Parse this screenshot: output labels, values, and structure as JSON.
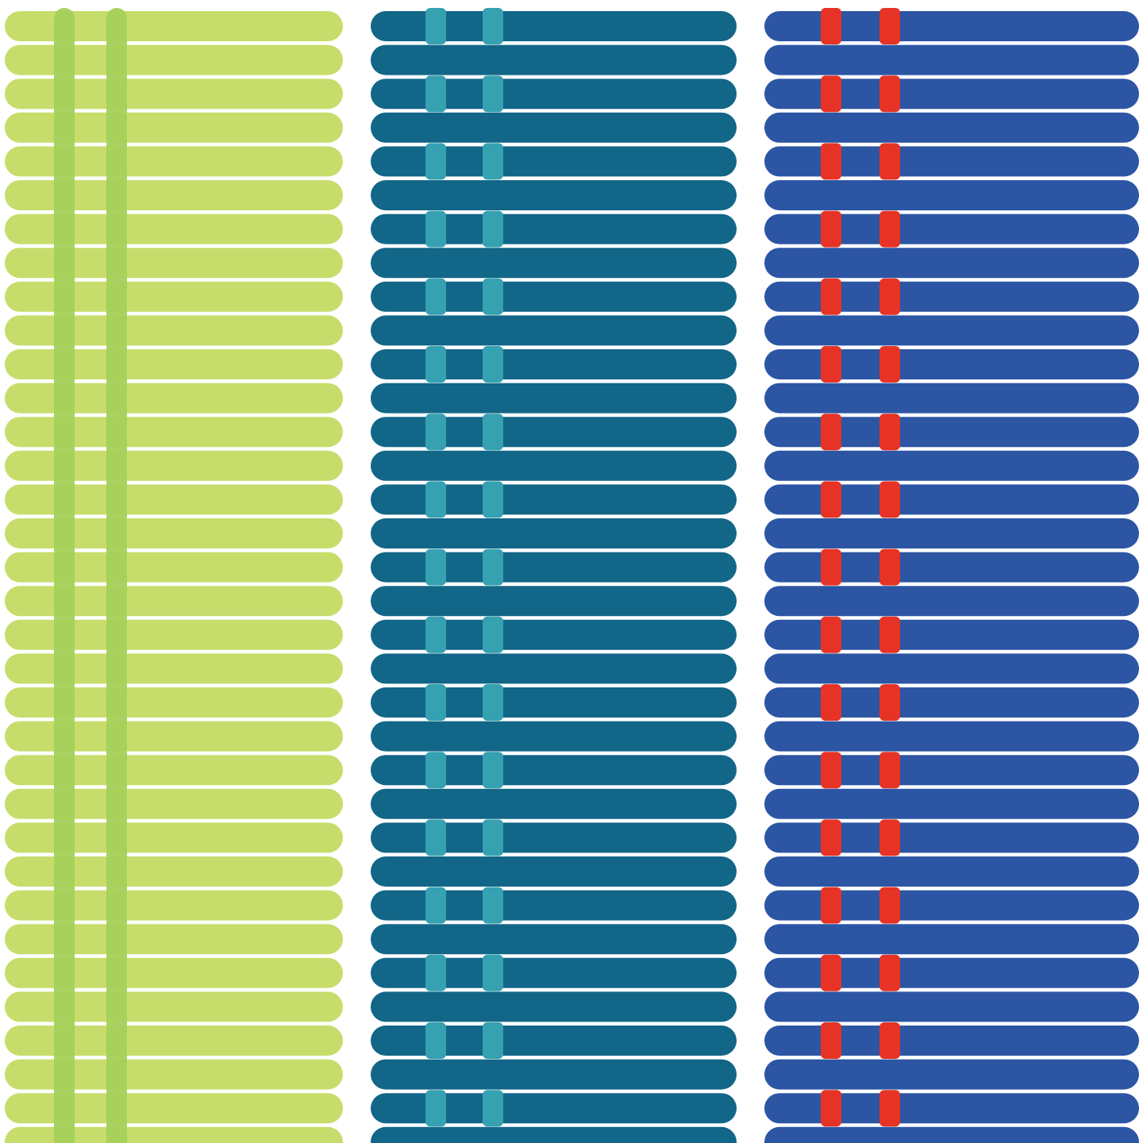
{
  "background": "#ffffff",
  "pattern": {
    "stripes_per_column": 34,
    "stitches_per_column": 2,
    "columns": [
      {
        "id": "green",
        "stripe_color": "#c6dd6b",
        "stitch_color": "#a5d05a",
        "stitch_style": "solid"
      },
      {
        "id": "teal",
        "stripe_color": "#126688",
        "stitch_color": "#36a1b1",
        "stitch_style": "woven"
      },
      {
        "id": "blue",
        "stripe_color": "#2c55a4",
        "stitch_color": "#e63325",
        "stitch_style": "woven"
      }
    ]
  }
}
